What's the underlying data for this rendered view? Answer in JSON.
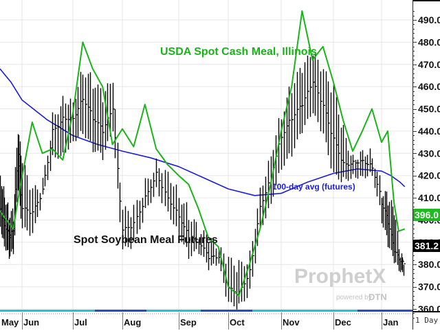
{
  "chart_data": {
    "type": "line",
    "title": "",
    "xlabel": "",
    "ylabel": "",
    "ylim": [
      356,
      494
    ],
    "grid": true,
    "y_ticks": [
      360,
      370,
      380,
      390,
      400,
      410,
      420,
      430,
      440,
      450,
      460,
      470,
      480,
      490
    ],
    "y_tick_labels": [
      "360.0",
      "370.0",
      "380.0",
      "390.0",
      "400.0",
      "410.0",
      "420.0",
      "430.0",
      "440.0",
      "450.0",
      "460.0",
      "470.0",
      "480.0",
      "490.0"
    ],
    "x_tick_labels": [
      "May",
      "Jun",
      "Jul",
      "Aug",
      "Sep",
      "Oct",
      "Nov",
      "Dec",
      "Jan"
    ],
    "interval": "1 Day",
    "annotations": [
      {
        "text": "USDA Spot Cash Meal, Illinois",
        "color": "#18b418"
      },
      {
        "text": "Spot Soybean Meal Futures",
        "color": "#111111"
      },
      {
        "text": "100-day avg (futures)",
        "color": "#1a1ae0"
      }
    ],
    "last_value_tags": [
      {
        "series": "USDA Spot Cash Meal, Illinois",
        "value": "396.0",
        "color": "#1fba1f"
      },
      {
        "series": "Spot Soybean Meal Futures",
        "value": "381.2",
        "color": "#000000"
      }
    ],
    "series": [
      {
        "name": "USDA Spot Cash Meal, Illinois",
        "type": "line",
        "color": "#18b418",
        "x_months": [
          0.0,
          0.3,
          0.6,
          0.9,
          1.2,
          1.4,
          1.6,
          1.8,
          2.0,
          2.2,
          2.4,
          2.6,
          2.8,
          3.0,
          3.2,
          3.4,
          3.6,
          3.8,
          4.0,
          4.2,
          4.4,
          4.6,
          4.8,
          5.0,
          5.2,
          5.4,
          5.6,
          5.8,
          6.0,
          6.2,
          6.4,
          6.6,
          6.8,
          7.0,
          7.2,
          7.4,
          7.6,
          7.8,
          8.0,
          8.2,
          8.4,
          8.55,
          8.75
        ],
        "values": [
          404,
          400,
          396,
          414,
          444,
          430,
          432,
          427,
          448,
          480,
          468,
          460,
          434,
          441,
          433,
          452,
          432,
          425,
          420,
          416,
          405,
          392,
          388,
          370,
          366,
          380,
          396,
          416,
          440,
          460,
          494,
          472,
          478,
          462,
          445,
          431,
          440,
          450,
          435,
          440,
          408,
          395,
          396
        ]
      },
      {
        "name": "Spot Soybean Meal Futures",
        "type": "ohlc",
        "color": "#000000",
        "x_months": [
          0.0,
          0.2,
          0.4,
          0.6,
          0.8,
          1.0,
          1.2,
          1.4,
          1.6,
          1.8,
          2.0,
          2.2,
          2.4,
          2.6,
          2.8,
          3.0,
          3.2,
          3.4,
          3.6,
          3.8,
          4.0,
          4.2,
          4.4,
          4.6,
          4.8,
          5.0,
          5.2,
          5.4,
          5.6,
          5.8,
          6.0,
          6.2,
          6.4,
          6.6,
          6.8,
          7.0,
          7.2,
          7.4,
          7.6,
          7.8,
          8.0,
          8.2,
          8.4,
          8.6
        ],
        "high": [
          420,
          412,
          403,
          402,
          440,
          425,
          412,
          416,
          446,
          455,
          454,
          468,
          462,
          455,
          462,
          403,
          404,
          416,
          426,
          422,
          412,
          403,
          394,
          391,
          386,
          381,
          379,
          384,
          414,
          430,
          448,
          460,
          468,
          474,
          466,
          458,
          440,
          428,
          432,
          430,
          413,
          409,
          403,
          382
        ],
        "low": [
          397,
          389,
          384,
          386,
          414,
          396,
          393,
          410,
          428,
          430,
          436,
          440,
          432,
          428,
          440,
          386,
          389,
          404,
          414,
          404,
          394,
          384,
          386,
          378,
          380,
          362,
          361,
          368,
          396,
          408,
          424,
          430,
          440,
          448,
          438,
          420,
          418,
          420,
          420,
          421,
          400,
          389,
          381,
          376
        ],
        "close": [
          405,
          398,
          393,
          396,
          430,
          405,
          403,
          413,
          440,
          446,
          446,
          455,
          446,
          440,
          450,
          395,
          398,
          410,
          421,
          410,
          402,
          392,
          390,
          383,
          383,
          369,
          367,
          377,
          406,
          420,
          438,
          446,
          452,
          462,
          451,
          436,
          425,
          426,
          427,
          424,
          408,
          399,
          386,
          381
        ]
      },
      {
        "name": "100-day avg (futures)",
        "type": "line",
        "color": "#1a1ae0",
        "x_months": [
          0.0,
          0.5,
          1.0,
          1.5,
          2.0,
          2.5,
          3.0,
          3.5,
          4.0,
          4.5,
          5.0,
          5.5,
          6.0,
          6.5,
          7.0,
          7.5,
          8.0,
          8.3,
          8.6,
          8.75
        ],
        "values": [
          468,
          462,
          454,
          445,
          438,
          434,
          431,
          428,
          424,
          419,
          414,
          411,
          412,
          417,
          421,
          423,
          422,
          420,
          417,
          415
        ]
      }
    ]
  },
  "axis": {
    "right_tags": {
      "green_value": "396.0",
      "black_value": "381.2"
    },
    "interval_label": "1 Day"
  },
  "watermark": {
    "brand": "ProphetX",
    "sub": "powered by",
    "sub_brand": "DTN"
  },
  "colors": {
    "green": "#18b418",
    "green_tag": "#1fba1f",
    "blue": "#1a1ae0",
    "black": "#000000",
    "grid": "#e6e6e6",
    "strip_cyan": "#19c8c8",
    "strip_blue": "#1f4fc4"
  }
}
